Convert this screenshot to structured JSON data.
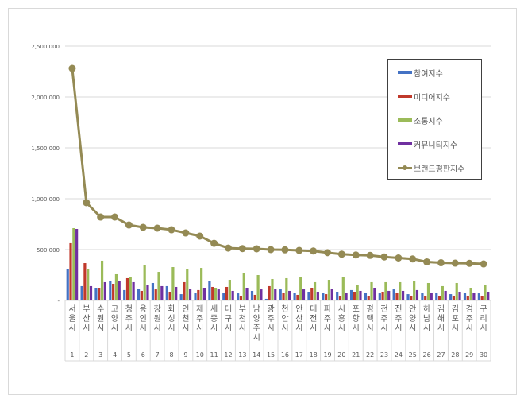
{
  "chart_data": {
    "type": "bar",
    "combo": "clustered bar + line",
    "title": "",
    "xlabel": "",
    "ylabel": "",
    "ylim": [
      0,
      2500000
    ],
    "yticks": [
      0,
      500000,
      1000000,
      1500000,
      2000000,
      2500000
    ],
    "ytick_labels": [
      "-",
      "500,000",
      "1,000,000",
      "1,500,000",
      "2,000,000",
      "2,500,000"
    ],
    "grid": true,
    "legend_position": "upper right (inside)",
    "categories": [
      "서울시",
      "부산시",
      "수원시",
      "고양시",
      "청주시",
      "용인시",
      "창원시",
      "화성시",
      "인천시",
      "제주시",
      "세종시",
      "대구시",
      "부천시",
      "남양주시",
      "광주시",
      "천안시",
      "안산시",
      "대전시",
      "파주시",
      "시흥시",
      "포항시",
      "평택시",
      "전주시",
      "진주시",
      "안양시",
      "하남시",
      "김해시",
      "김포시",
      "경주시",
      "구리시"
    ],
    "ranks": [
      "1",
      "2",
      "3",
      "4",
      "5",
      "6",
      "7",
      "8",
      "9",
      "10",
      "11",
      "12",
      "13",
      "14",
      "15",
      "16",
      "17",
      "18",
      "19",
      "20",
      "21",
      "22",
      "23",
      "24",
      "25",
      "26",
      "27",
      "28",
      "29",
      "30"
    ],
    "series": [
      {
        "name": "참여지수",
        "type": "bar",
        "color": "#4472c4",
        "values": [
          305000,
          141000,
          125000,
          195000,
          102000,
          117000,
          172000,
          141000,
          62000,
          78000,
          195000,
          78000,
          70000,
          94000,
          16000,
          109000,
          78000,
          86000,
          78000,
          86000,
          102000,
          78000,
          70000,
          109000,
          62000,
          78000,
          78000,
          62000,
          78000,
          70000
        ]
      },
      {
        "name": "미디어지수",
        "type": "bar",
        "color": "#c0392b",
        "values": [
          563000,
          367000,
          125000,
          164000,
          219000,
          94000,
          109000,
          86000,
          180000,
          102000,
          133000,
          133000,
          47000,
          55000,
          141000,
          78000,
          55000,
          125000,
          62000,
          39000,
          86000,
          39000,
          86000,
          78000,
          47000,
          47000,
          47000,
          47000,
          47000,
          39000
        ]
      },
      {
        "name": "소통지수",
        "type": "bar",
        "color": "#9bbb59",
        "values": [
          711000,
          305000,
          391000,
          258000,
          234000,
          344000,
          281000,
          328000,
          305000,
          320000,
          125000,
          203000,
          266000,
          250000,
          211000,
          219000,
          234000,
          180000,
          203000,
          227000,
          156000,
          180000,
          180000,
          180000,
          195000,
          172000,
          141000,
          172000,
          125000,
          156000
        ]
      },
      {
        "name": "커뮤니티지수",
        "type": "bar",
        "color": "#7030a0",
        "values": [
          703000,
          141000,
          180000,
          195000,
          180000,
          156000,
          141000,
          133000,
          117000,
          125000,
          109000,
          94000,
          125000,
          109000,
          117000,
          94000,
          109000,
          86000,
          117000,
          78000,
          94000,
          125000,
          94000,
          94000,
          102000,
          78000,
          94000,
          86000,
          78000,
          86000
        ]
      },
      {
        "name": "브랜드평판지수",
        "type": "line",
        "color": "#948a54",
        "values": [
          2281000,
          961000,
          820000,
          820000,
          742000,
          719000,
          711000,
          695000,
          664000,
          633000,
          562000,
          515000,
          510000,
          508000,
          500000,
          498000,
          492000,
          486000,
          470000,
          455000,
          447000,
          443000,
          428000,
          418000,
          408000,
          379000,
          371000,
          367000,
          365000,
          359000
        ]
      }
    ]
  },
  "legend": {
    "items": [
      {
        "label": "참여지수",
        "color": "#4472c4",
        "kind": "bar"
      },
      {
        "label": "미디어지수",
        "color": "#c0392b",
        "kind": "bar"
      },
      {
        "label": "소통지수",
        "color": "#9bbb59",
        "kind": "bar"
      },
      {
        "label": "커뮤니티지수",
        "color": "#7030a0",
        "kind": "bar"
      },
      {
        "label": "브랜드평판지수",
        "color": "#948a54",
        "kind": "line"
      }
    ]
  }
}
